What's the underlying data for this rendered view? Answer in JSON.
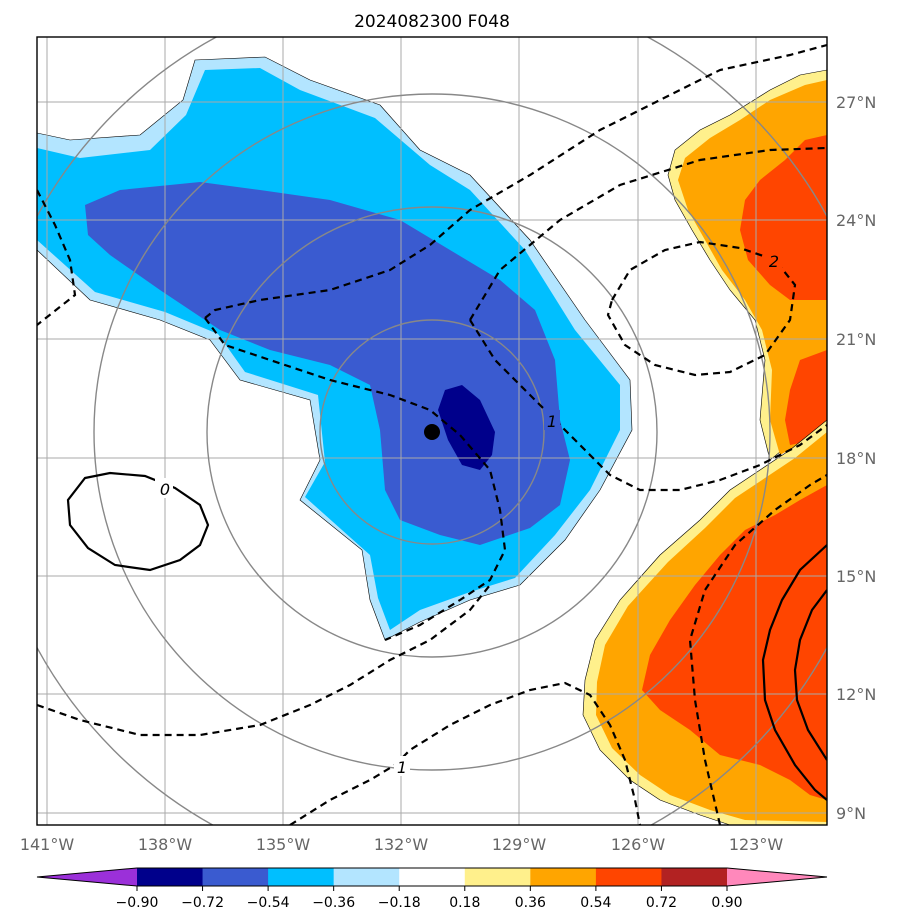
{
  "chart_data": {
    "type": "map",
    "title": "2024082300 F048",
    "lon_ticks": [
      "141°W",
      "138°W",
      "135°W",
      "132°W",
      "129°W",
      "126°W",
      "123°W"
    ],
    "lat_ticks": [
      "27°N",
      "24°N",
      "21°N",
      "18°N",
      "15°N",
      "12°N",
      "9°N"
    ],
    "colorbar": {
      "ticks": [
        "−0.90",
        "−0.72",
        "−0.54",
        "−0.36",
        "−0.18",
        "0.18",
        "0.36",
        "0.54",
        "0.72",
        "0.90"
      ],
      "colors": [
        "#9b30d9",
        "#00008b",
        "#3a5bd0",
        "#00bfff",
        "#b3e5ff",
        "#ffffff",
        "#fff08c",
        "#ffa500",
        "#ff4500",
        "#b22222",
        "#ff88bb"
      ]
    },
    "contour_labels": [
      "0",
      "1",
      "1",
      "2"
    ],
    "center": {
      "lon": "131.2°W",
      "lat": "18.6°N"
    },
    "range_rings": 4
  },
  "colors": {
    "grid": "#aaaaaa",
    "rings": "#888888"
  }
}
